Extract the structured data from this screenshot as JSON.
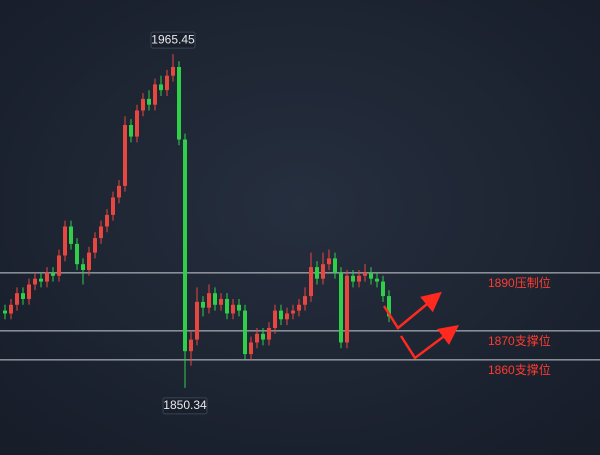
{
  "chart_data": {
    "type": "candlestick",
    "open": [
      1877,
      1876,
      1879,
      1883,
      1881,
      1886,
      1888,
      1887,
      1890,
      1889,
      1896,
      1906,
      1900,
      1893,
      1891,
      1897,
      1902,
      1906,
      1910,
      1916,
      1920,
      1941,
      1937,
      1946,
      1950,
      1948,
      1955,
      1953,
      1958,
      1961,
      1936,
      1863,
      1867,
      1880,
      1878,
      1883,
      1879,
      1881,
      1876,
      1879,
      1877,
      1862,
      1866,
      1869,
      1867,
      1871,
      1877,
      1874,
      1876,
      1877,
      1879,
      1882,
      1892,
      1888,
      1893,
      1895,
      1890,
      1866,
      1889,
      1887,
      1889,
      1890,
      1888,
      1887,
      1882
    ],
    "high": [
      1879,
      1881,
      1885,
      1885,
      1888,
      1890,
      1890,
      1892,
      1892,
      1898,
      1908,
      1908,
      1902,
      1895,
      1899,
      1904,
      1908,
      1912,
      1918,
      1922,
      1944,
      1943,
      1948,
      1952,
      1953,
      1957,
      1958,
      1960,
      1965.45,
      1963,
      1938,
      1870,
      1885,
      1882,
      1886,
      1885,
      1883,
      1883,
      1881,
      1881,
      1879,
      1868,
      1871,
      1871,
      1873,
      1879,
      1879,
      1878,
      1879,
      1881,
      1885,
      1897,
      1894,
      1897,
      1898,
      1897,
      1892,
      1891,
      1891,
      1891,
      1893,
      1892,
      1890,
      1889,
      1884
    ],
    "low": [
      1874,
      1874,
      1877,
      1879,
      1879,
      1884,
      1885,
      1885,
      1887,
      1887,
      1894,
      1898,
      1891,
      1886,
      1889,
      1895,
      1900,
      1904,
      1908,
      1914,
      1918,
      1935,
      1935,
      1944,
      1946,
      1946,
      1951,
      1951,
      1956,
      1934,
      1850.34,
      1858,
      1865,
      1875,
      1876,
      1877,
      1877,
      1874,
      1874,
      1875,
      1860,
      1860,
      1864,
      1865,
      1865,
      1869,
      1872,
      1872,
      1874,
      1875,
      1877,
      1880,
      1886,
      1886,
      1891,
      1888,
      1864,
      1864,
      1885,
      1885,
      1887,
      1886,
      1885,
      1880,
      1873
    ],
    "close": [
      1876,
      1879,
      1883,
      1881,
      1886,
      1888,
      1887,
      1890,
      1889,
      1896,
      1906,
      1900,
      1893,
      1891,
      1897,
      1902,
      1906,
      1910,
      1916,
      1920,
      1941,
      1937,
      1946,
      1950,
      1948,
      1955,
      1953,
      1958,
      1961,
      1936,
      1863,
      1867,
      1880,
      1878,
      1883,
      1879,
      1881,
      1876,
      1879,
      1877,
      1862,
      1866,
      1869,
      1867,
      1871,
      1877,
      1874,
      1876,
      1877,
      1879,
      1882,
      1892,
      1888,
      1893,
      1895,
      1890,
      1866,
      1889,
      1887,
      1889,
      1890,
      1888,
      1887,
      1882,
      1875
    ],
    "up_color": "#e8473f",
    "down_color": "#2fcf4a",
    "ylim": [
      1827.2,
      1984.1
    ],
    "levels": [
      {
        "value": 1890,
        "label": "1890压制位"
      },
      {
        "value": 1870,
        "label": "1870支撑位"
      },
      {
        "value": 1860,
        "label": "1860支撑位"
      }
    ],
    "level_color": "#c9ccd2",
    "level_label_color": "#ff3b2f",
    "annotations": [
      {
        "index": 28,
        "field": "high"
      },
      {
        "index": 30,
        "field": "low"
      }
    ]
  }
}
